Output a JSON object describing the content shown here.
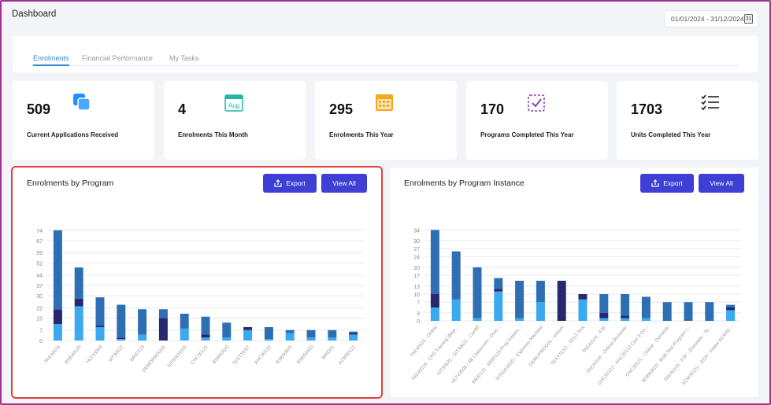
{
  "page": {
    "title": "Dashboard"
  },
  "date_range": {
    "value": "01/01/2024 - 31/12/2024",
    "icon": "calendar-icon",
    "icon_text": "31"
  },
  "tabs": [
    {
      "label": "Enrolments",
      "active": true
    },
    {
      "label": "Financial Performance",
      "active": false
    },
    {
      "label": "My Tasks",
      "active": false
    }
  ],
  "stats": [
    {
      "value": "509",
      "label": "Current Applications Received",
      "icon": "copy-squares-icon",
      "color": "#1e90ff"
    },
    {
      "value": "4",
      "label": "Enrolments This Month",
      "icon": "calendar-aug-icon",
      "icon_text": "Aug",
      "color": "#1fb5a8"
    },
    {
      "value": "295",
      "label": "Enrolments This Year",
      "icon": "calendar-grid-icon",
      "color": "#f5a623"
    },
    {
      "value": "170",
      "label": "Programs Completed This Year",
      "icon": "checklist-icon",
      "color": "#8e44ad"
    },
    {
      "value": "1703",
      "label": "Units Completed This Year",
      "icon": "list-check-icon",
      "color": "#222222"
    }
  ],
  "colors": {
    "accent": "#3f3fd6",
    "tab_active": "#2f88d8",
    "series_a": "#2e6fb3",
    "series_b": "#28286e",
    "series_c": "#3aa9f0",
    "highlight": "#e0413a"
  },
  "panels": {
    "program": {
      "title": "Enrolments by Program",
      "export_label": "Export",
      "view_all_label": "View All"
    },
    "instance": {
      "title": "Enrolments by Program Instance",
      "export_label": "Export",
      "view_all_label": "View All"
    }
  },
  "chart_data": [
    {
      "type": "bar",
      "stacked": true,
      "title": "Enrolments by Program",
      "yticks": [
        0,
        7,
        15,
        22,
        30,
        37,
        44,
        52,
        59,
        67,
        74
      ],
      "ylim": [
        0,
        76
      ],
      "categories": [
        "TAE40116",
        "BSB40120",
        "HLT43009",
        "SIT30622",
        "BRID123",
        "DEMOPROG01",
        "SIT50416SG",
        "CHC30121",
        "BSB60520",
        "TESTTEST",
        "AHC30122",
        "BSB50820",
        "BSB50420",
        "BRID01",
        "ACM30121"
      ],
      "series": [
        {
          "values": [
            11,
            23,
            9,
            1,
            4,
            0,
            8,
            2,
            2,
            7,
            1,
            5,
            2,
            2,
            4
          ]
        },
        {
          "values": [
            10,
            5,
            1,
            1,
            0,
            15,
            0,
            2,
            0,
            2,
            0,
            0,
            0,
            0,
            1
          ]
        },
        {
          "values": [
            53,
            21,
            19,
            22,
            17,
            6,
            10,
            12,
            10,
            0,
            8,
            2,
            5,
            5,
            1
          ]
        }
      ]
    },
    {
      "type": "bar",
      "stacked": true,
      "title": "Enrolments by Program Instance",
      "yticks": [
        0,
        3,
        7,
        10,
        13,
        17,
        20,
        24,
        27,
        30,
        34
      ],
      "ylim": [
        0,
        35
      ],
      "categories": [
        "TAE40116 - Online",
        "TAE40116 - CPD Training (Bayl...",
        "SIT30622 - SIT30622 - Cardiff",
        "HLT43009 - 4B Classroom - Dom...",
        "BRID123 - BRID123 Prog Instanc...",
        "SIT50416SG - Espresso Machine",
        "DEMOPROG01 - eStore",
        "TESTTEST - TEST TAX",
        "TAE40116 - F2F",
        "TAE40116 - Online-Domestic",
        "CHC30122 - AHC30122 Cert 3 On...",
        "CHC30121 - Online - Domestic",
        "BSB60520 - BSB Test Program (...",
        "TAE40116 - F2F - Domestic - Te...",
        "ACM30121 - 2024 - Intake ACM30..."
      ],
      "series": [
        {
          "values": [
            5,
            8,
            1,
            11,
            1,
            7,
            0,
            8,
            1,
            1,
            1,
            0,
            0,
            0,
            4
          ]
        },
        {
          "values": [
            5,
            0,
            0,
            1,
            0,
            0,
            15,
            2,
            2,
            1,
            0,
            0,
            0,
            0,
            1
          ]
        },
        {
          "values": [
            24,
            18,
            19,
            4,
            14,
            8,
            0,
            0,
            7,
            8,
            8,
            7,
            7,
            7,
            1
          ]
        }
      ]
    }
  ]
}
